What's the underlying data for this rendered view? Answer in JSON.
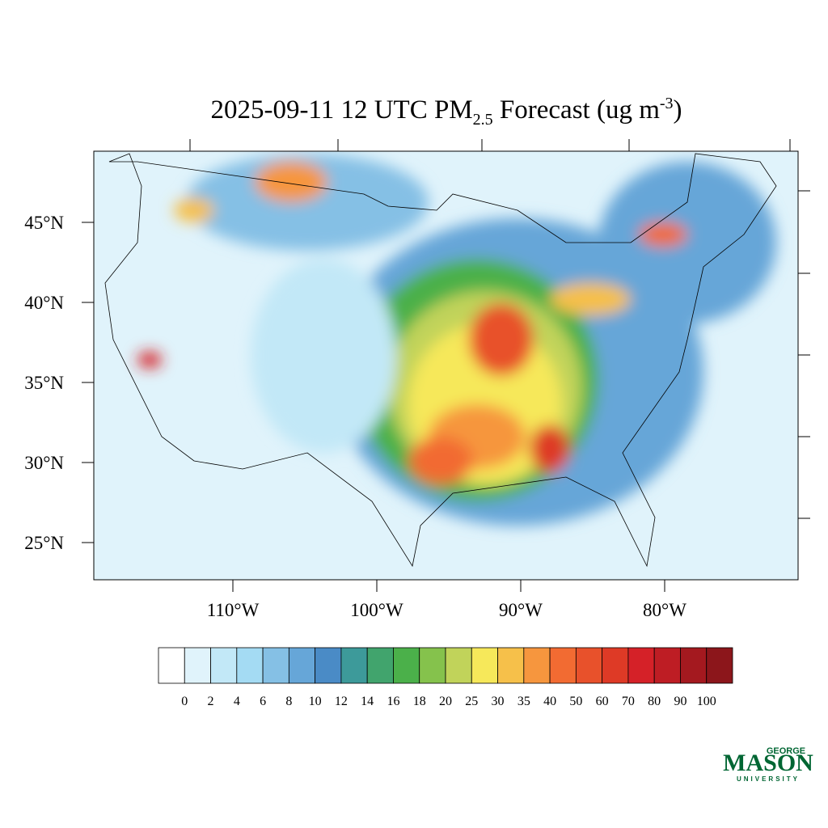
{
  "title": {
    "main": "2025-09-11 12 UTC PM",
    "sub": "2.5",
    "mid": " Forecast (ug m",
    "sup": "-3",
    "end": ")"
  },
  "map": {
    "lat_ticks": [
      {
        "value": 45,
        "label": "45°N"
      },
      {
        "value": 40,
        "label": "40°N"
      },
      {
        "value": 35,
        "label": "35°N"
      },
      {
        "value": 30,
        "label": "30°N"
      },
      {
        "value": 25,
        "label": "25°N"
      }
    ],
    "lon_ticks": [
      {
        "value": -110,
        "label": "110°W"
      },
      {
        "value": -100,
        "label": "100°W"
      },
      {
        "value": -90,
        "label": "90°W"
      },
      {
        "value": -80,
        "label": "80°W"
      }
    ]
  },
  "colorbar": {
    "colors": [
      "#ffffff",
      "#e0f3fb",
      "#c2e8f7",
      "#a4dbf3",
      "#85c0e5",
      "#66a6d8",
      "#4a8bc6",
      "#3d9a9a",
      "#41a46d",
      "#4bb04a",
      "#85c24c",
      "#c1d35a",
      "#f6e85a",
      "#f6c04a",
      "#f6963e",
      "#f26b32",
      "#e8512b",
      "#de3a26",
      "#d52128",
      "#be1d24",
      "#a4191f",
      "#8c161b"
    ],
    "labels": [
      0,
      2,
      4,
      6,
      8,
      10,
      12,
      14,
      16,
      18,
      20,
      25,
      30,
      35,
      40,
      50,
      60,
      70,
      80,
      90,
      100
    ]
  },
  "logo": {
    "top": "GEORGE",
    "main": "MASON",
    "bottom": "UNIVERSITY"
  }
}
